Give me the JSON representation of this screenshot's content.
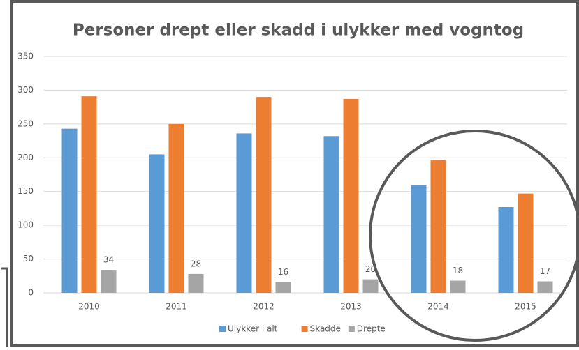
{
  "chart_data": {
    "type": "bar",
    "title": "Personer drept eller skadd i ulykker med vogntog",
    "categories": [
      "2010",
      "2011",
      "2012",
      "2013",
      "2014",
      "2015"
    ],
    "series": [
      {
        "name": "Ulykker i alt",
        "color": "#5b9bd5",
        "values": [
          243,
          205,
          236,
          232,
          159,
          127
        ]
      },
      {
        "name": "Skadde",
        "color": "#ed7d31",
        "values": [
          291,
          250,
          290,
          287,
          197,
          147
        ]
      },
      {
        "name": "Drepte",
        "color": "#a5a5a5",
        "values": [
          34,
          28,
          16,
          20,
          18,
          17
        ],
        "data_labels": true
      }
    ],
    "ylim": [
      0,
      350
    ],
    "yticks": [
      0,
      50,
      100,
      150,
      200,
      250,
      300,
      350
    ],
    "grid": true,
    "legend": "bottom"
  }
}
